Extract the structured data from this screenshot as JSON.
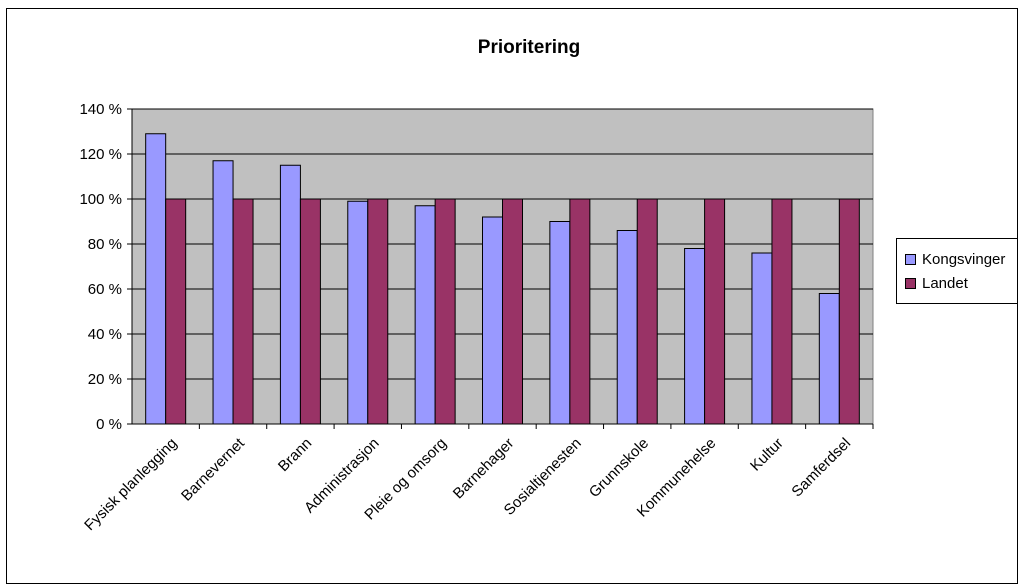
{
  "chart_data": {
    "type": "bar",
    "title": "Prioritering",
    "xlabel": "",
    "ylabel": "",
    "ylim": [
      0,
      140
    ],
    "yticks": [
      "0 %",
      "20 %",
      "40 %",
      "60 %",
      "80 %",
      "100 %",
      "120 %",
      "140 %"
    ],
    "categories": [
      "Fysisk planlegging",
      "Barnevernet",
      "Brann",
      "Administrasjon",
      "Pleie og omsorg",
      "Barnehager",
      "Sosialtjenesten",
      "Grunnskole",
      "Kommunehelse",
      "Kultur",
      "Samferdsel"
    ],
    "series": [
      {
        "name": "Kongsvinger",
        "color": "#9999ff",
        "values": [
          129,
          117,
          115,
          99,
          97,
          92,
          90,
          86,
          78,
          76,
          58
        ]
      },
      {
        "name": "Landet",
        "color": "#993366",
        "values": [
          100,
          100,
          100,
          100,
          100,
          100,
          100,
          100,
          100,
          100,
          100
        ]
      }
    ],
    "plot_background": "#c0c0c0",
    "grid": true,
    "legend_position": "right"
  }
}
